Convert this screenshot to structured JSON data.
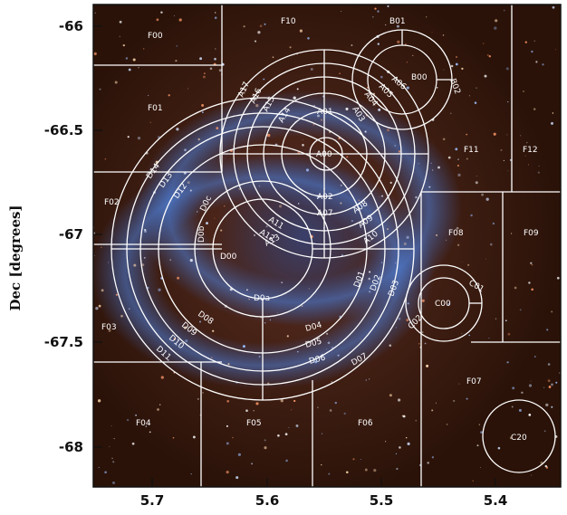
{
  "chart_data": {
    "type": "scatter",
    "xlabel": "",
    "ylabel": "Dec [degrees]",
    "x_ticks": [
      "5.7",
      "5.6",
      "5.5",
      "5.4"
    ],
    "y_ticks": [
      "-66",
      "-66.5",
      "-67",
      "-67.5",
      "-68"
    ],
    "region_labels": [
      "F00",
      "F01",
      "F02",
      "F03",
      "F04",
      "F05",
      "F06",
      "F07",
      "F08",
      "F09",
      "F10",
      "F11",
      "F12",
      "B00",
      "B01",
      "B02",
      "A00",
      "A01",
      "A02",
      "A03",
      "A04",
      "A05",
      "A06",
      "A07",
      "A08",
      "A09",
      "A10",
      "A11",
      "A12",
      "A13",
      "A14",
      "A15",
      "A16",
      "A17",
      "D00",
      "D0a",
      "D0b",
      "D0c",
      "D01",
      "D02",
      "D03",
      "D04",
      "D05",
      "D06",
      "D07",
      "D08",
      "D09",
      "D10",
      "D11",
      "D12",
      "D13",
      "D14",
      "C00",
      "C01",
      "C02",
      "C20"
    ],
    "colors": {
      "overlay": "#ffffff",
      "background": "#2a1208",
      "axis": "#111111"
    }
  }
}
